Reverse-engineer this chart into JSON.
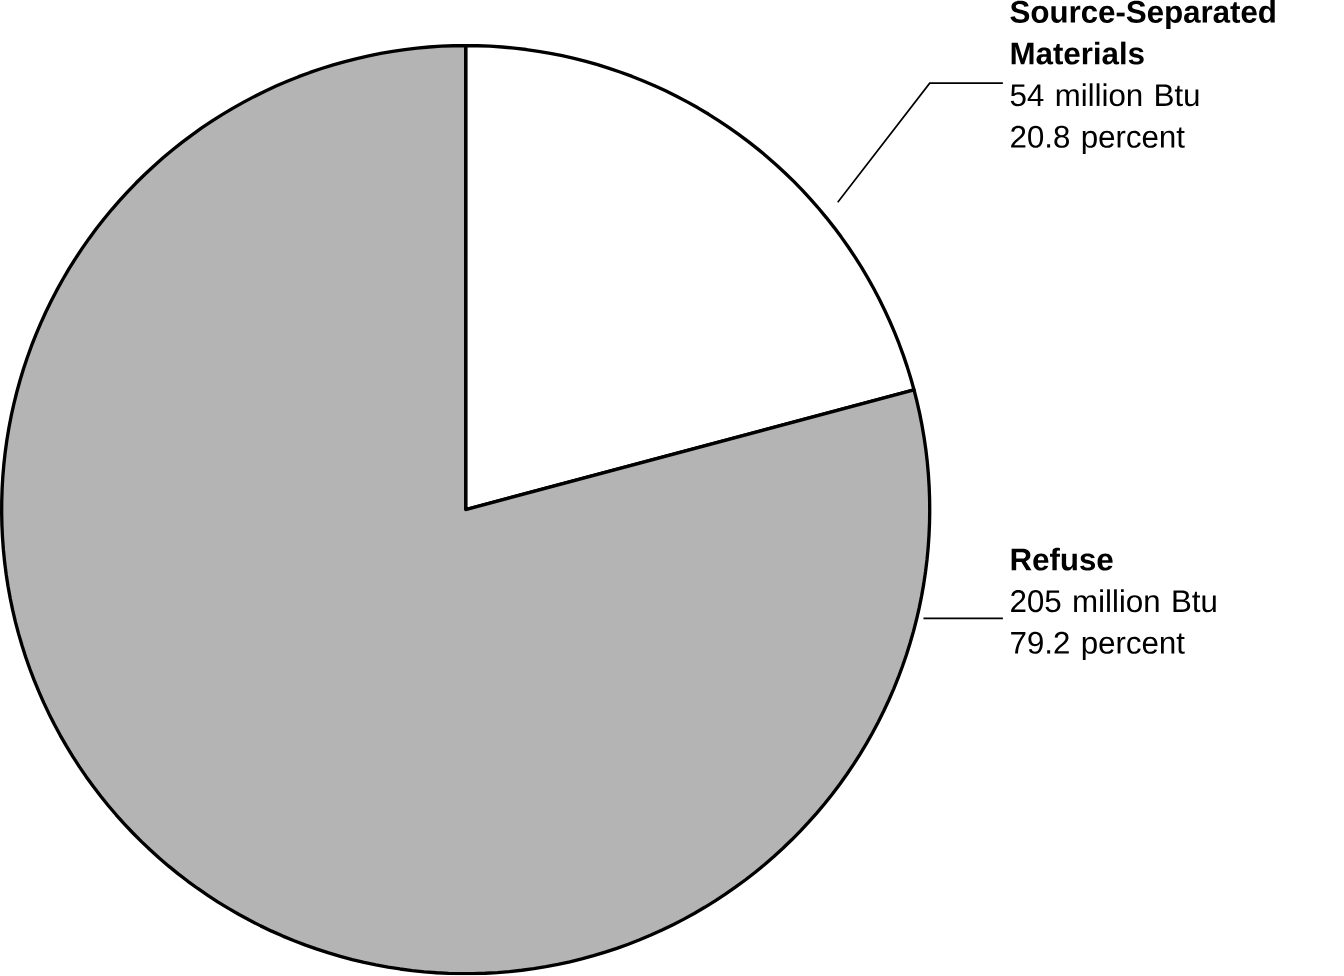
{
  "chart_data": {
    "type": "pie",
    "categories": [
      "Source-Separated Materials",
      "Refuse"
    ],
    "values": [
      54,
      205
    ],
    "colors": [
      "#ffffff",
      "#b4b4b4"
    ],
    "value_labels": [
      "54 million Btu",
      "205 million Btu"
    ],
    "annotations": [
      "20.8 percent",
      "79.2 percent"
    ]
  }
}
